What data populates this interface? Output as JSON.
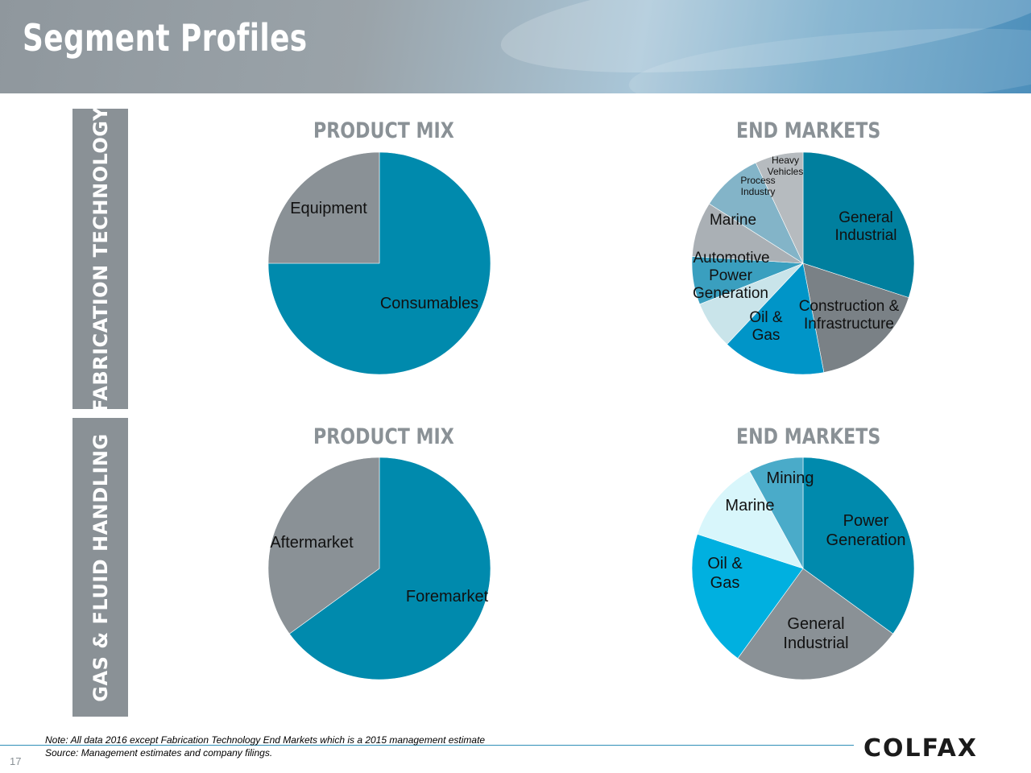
{
  "header": {
    "title": "Segment Profiles"
  },
  "segments": {
    "fabrication": {
      "label": "FABRICATION TECHNOLOGY"
    },
    "gas": {
      "label": "GAS & FLUID HANDLING"
    }
  },
  "headings": {
    "fab_product": "PRODUCT MIX",
    "fab_end": "END MARKETS",
    "gas_product": "PRODUCT MIX",
    "gas_end": "END MARKETS"
  },
  "chart_data": [
    {
      "type": "pie",
      "title": "PRODUCT MIX",
      "categories": [
        "Consumables",
        "Equipment"
      ],
      "values": [
        75,
        25
      ],
      "colors": [
        "#008aad",
        "#8a9196"
      ]
    },
    {
      "type": "pie",
      "title": "END MARKETS",
      "categories": [
        "General Industrial",
        "Construction & Infrastructure",
        "Oil & Gas",
        "Power Generation",
        "Automotive",
        "Marine",
        "Process Industry",
        "Heavy Vehicles"
      ],
      "values": [
        30,
        17,
        15,
        7,
        7,
        8,
        9,
        7
      ],
      "colors": [
        "#007f9e",
        "#7a8186",
        "#0095c8",
        "#c9e4ea",
        "#3a9fbf",
        "#aab0b5",
        "#83b4c8",
        "#b6bbbf"
      ]
    },
    {
      "type": "pie",
      "title": "PRODUCT MIX",
      "categories": [
        "Foremarket",
        "Aftermarket"
      ],
      "values": [
        65,
        35
      ],
      "colors": [
        "#008aad",
        "#8a9196"
      ]
    },
    {
      "type": "pie",
      "title": "END MARKETS",
      "categories": [
        "Power Generation",
        "General Industrial",
        "Oil & Gas",
        "Marine",
        "Mining"
      ],
      "values": [
        35,
        25,
        20,
        12,
        8
      ],
      "colors": [
        "#008aad",
        "#8a9196",
        "#00b0e0",
        "#d8f6fb",
        "#4aabc9"
      ]
    }
  ],
  "footer": {
    "note": "Note: All data 2016 except Fabrication Technology End Markets which is a 2015 management estimate",
    "source": "Source: Management estimates and company filings.",
    "page_number": "17",
    "logo": "COLFAX"
  }
}
